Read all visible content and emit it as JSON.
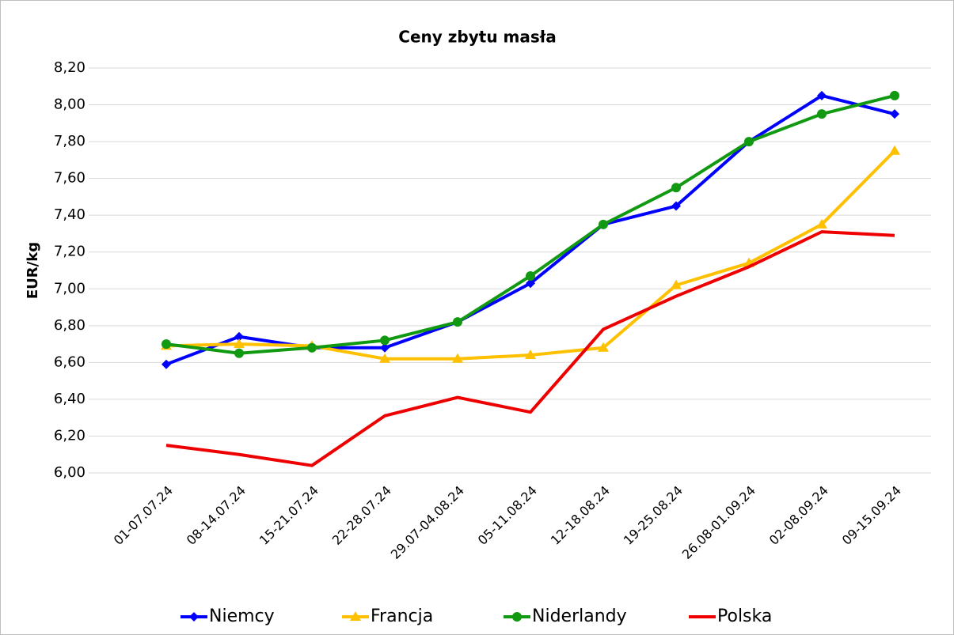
{
  "chart_data": {
    "type": "line",
    "title": "Ceny zbytu masła",
    "y_label": "EUR/kg",
    "categories": [
      "01-07.07.24",
      "08-14.07.24",
      "15-21.07.24",
      "22-28.07.24",
      "29.07-04.08.24",
      "05-11.08.24",
      "12-18.08.24",
      "19-25.08.24",
      "26.08-01.09.24",
      "02-08.09.24",
      "09-15.09.24"
    ],
    "series": [
      {
        "name": "Niemcy",
        "color": "#0000ff",
        "marker": "diamond",
        "values": [
          6.59,
          6.74,
          6.68,
          6.68,
          6.82,
          7.03,
          7.35,
          7.45,
          7.8,
          8.05,
          7.95
        ]
      },
      {
        "name": "Francja",
        "color": "#ffc000",
        "marker": "triangle",
        "values": [
          6.69,
          6.7,
          6.69,
          6.62,
          6.62,
          6.64,
          6.68,
          7.02,
          7.14,
          7.35,
          7.75
        ]
      },
      {
        "name": "Niderlandy",
        "color": "#119911",
        "marker": "circle",
        "values": [
          6.7,
          6.65,
          6.68,
          6.72,
          6.82,
          7.07,
          7.35,
          7.55,
          7.8,
          7.95,
          8.05
        ]
      },
      {
        "name": "Polska",
        "color": "#ee0000",
        "marker": "none",
        "values": [
          6.15,
          6.1,
          6.04,
          6.31,
          6.41,
          6.33,
          6.78,
          6.96,
          7.12,
          7.31,
          7.29
        ]
      }
    ],
    "ylim": [
      6.0,
      8.2
    ],
    "yticks": [
      {
        "value": 6.0,
        "label": "6,00"
      },
      {
        "value": 6.2,
        "label": "6,20"
      },
      {
        "value": 6.4,
        "label": "6,40"
      },
      {
        "value": 6.6,
        "label": "6,60"
      },
      {
        "value": 6.8,
        "label": "6,80"
      },
      {
        "value": 7.0,
        "label": "7,00"
      },
      {
        "value": 7.2,
        "label": "7,20"
      },
      {
        "value": 7.4,
        "label": "7,40"
      },
      {
        "value": 7.6,
        "label": "7,60"
      },
      {
        "value": 7.8,
        "label": "7,80"
      },
      {
        "value": 8.0,
        "label": "8,00"
      },
      {
        "value": 8.2,
        "label": "8,20"
      }
    ],
    "grid": true,
    "legend": "bottom"
  }
}
